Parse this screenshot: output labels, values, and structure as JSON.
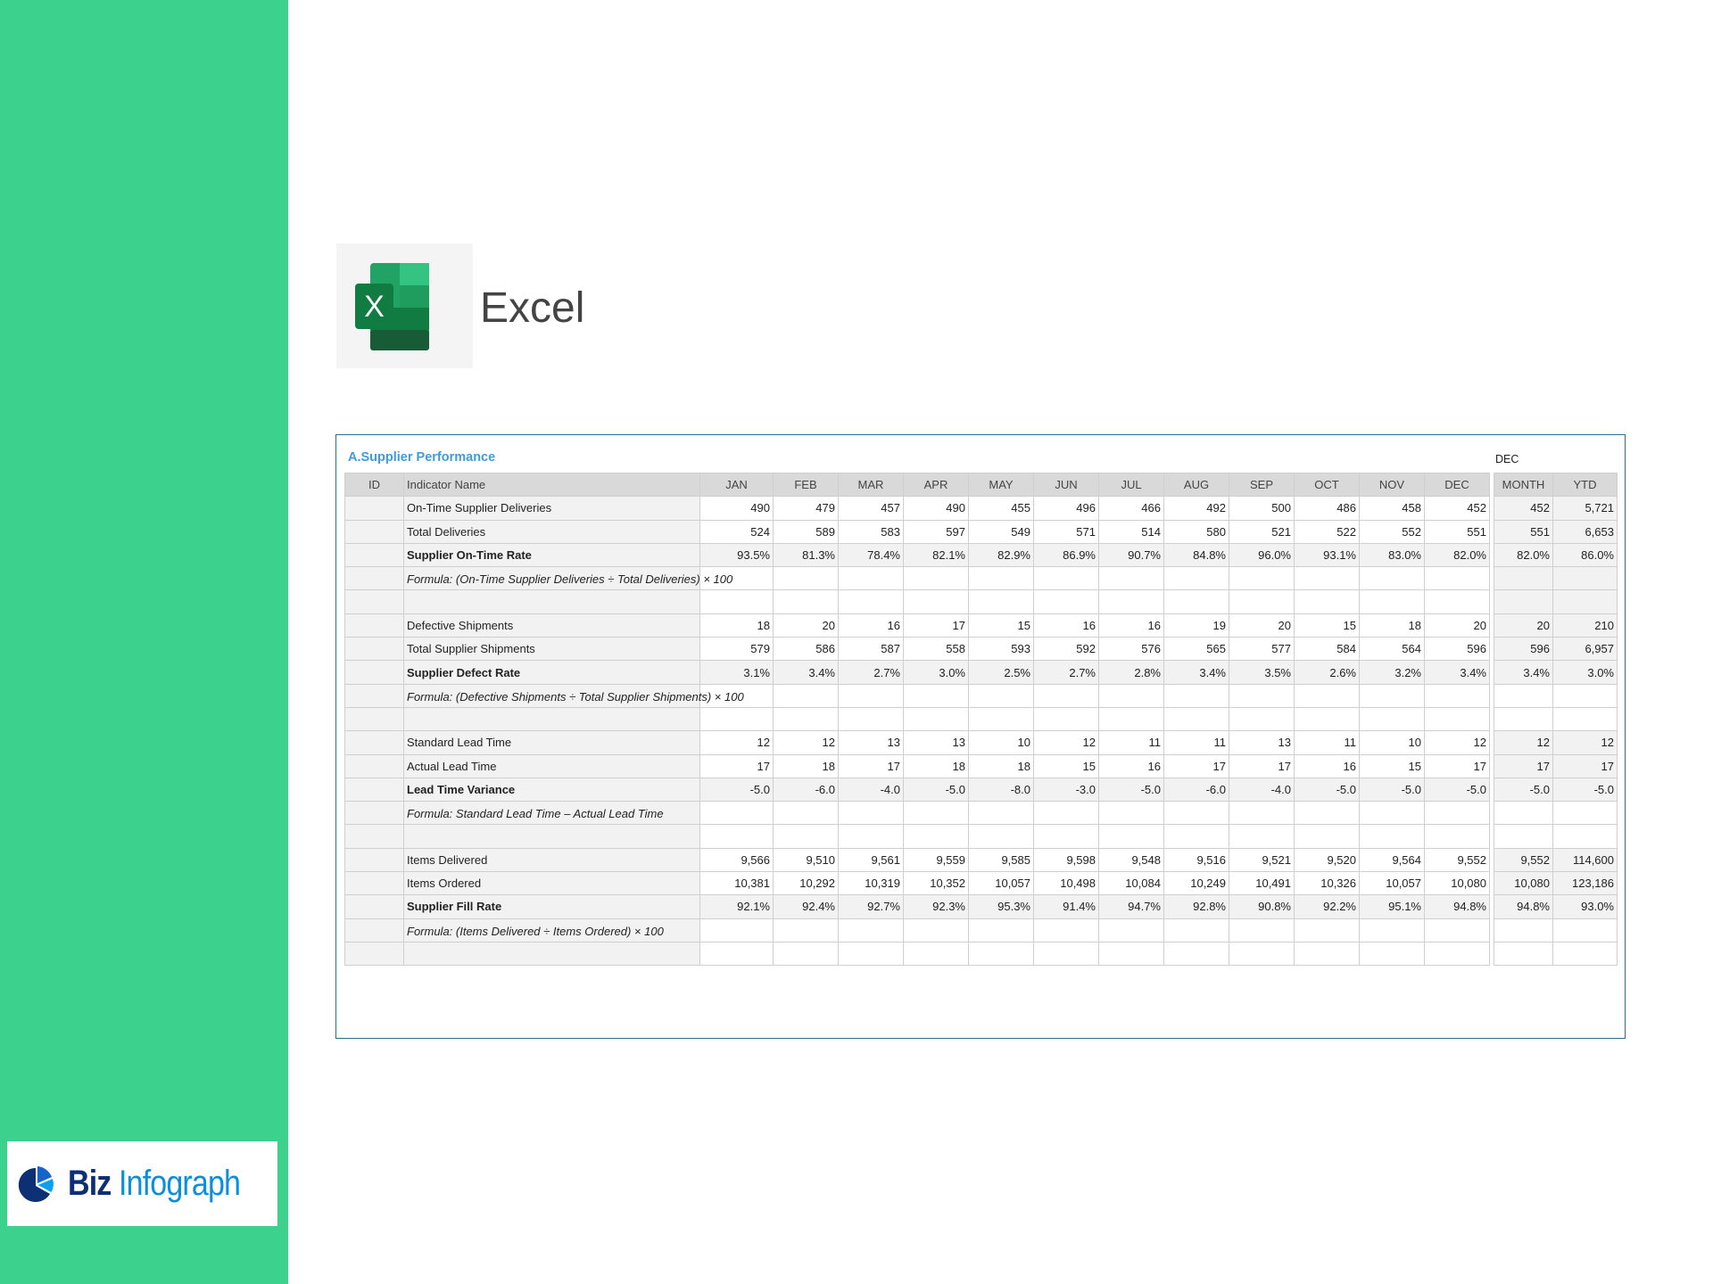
{
  "brand": {
    "logo_text_1": "Biz",
    "logo_text_2": "Infograph",
    "app_name": "Excel"
  },
  "colors": {
    "sidebar": "#3dd18e",
    "accent_title": "#3f9be0",
    "frame": "#2e6e8a",
    "header_bg": "#d9d9d9"
  },
  "sheet": {
    "title": "A.Supplier Performance",
    "summary_period": "DEC",
    "headers": {
      "id": "ID",
      "name": "Indicator Name",
      "months": [
        "JAN",
        "FEB",
        "MAR",
        "APR",
        "MAY",
        "JUN",
        "JUL",
        "AUG",
        "SEP",
        "OCT",
        "NOV",
        "DEC"
      ],
      "month": "MONTH",
      "ytd": "YTD"
    },
    "rows": [
      {
        "type": "data",
        "name": "On-Time Supplier Deliveries",
        "values": [
          "490",
          "479",
          "457",
          "490",
          "455",
          "496",
          "466",
          "492",
          "500",
          "486",
          "458",
          "452"
        ],
        "month": "452",
        "ytd": "5,721"
      },
      {
        "type": "data",
        "name": "Total Deliveries",
        "values": [
          "524",
          "589",
          "583",
          "597",
          "549",
          "571",
          "514",
          "580",
          "521",
          "522",
          "552",
          "551"
        ],
        "month": "551",
        "ytd": "6,653"
      },
      {
        "type": "bold",
        "name": "Supplier On-Time Rate",
        "values": [
          "93.5%",
          "81.3%",
          "78.4%",
          "82.1%",
          "82.9%",
          "86.9%",
          "90.7%",
          "84.8%",
          "96.0%",
          "93.1%",
          "83.0%",
          "82.0%"
        ],
        "month": "82.0%",
        "ytd": "86.0%"
      },
      {
        "type": "formula",
        "name": "Formula: (On-Time Supplier Deliveries ÷ Total Deliveries) × 100",
        "grey": true
      },
      {
        "type": "blank",
        "grey": true
      },
      {
        "type": "data",
        "name": "Defective Shipments",
        "values": [
          "18",
          "20",
          "16",
          "17",
          "15",
          "16",
          "16",
          "19",
          "20",
          "15",
          "18",
          "20"
        ],
        "month": "20",
        "ytd": "210"
      },
      {
        "type": "data",
        "name": "Total Supplier Shipments",
        "values": [
          "579",
          "586",
          "587",
          "558",
          "593",
          "592",
          "576",
          "565",
          "577",
          "584",
          "564",
          "596"
        ],
        "month": "596",
        "ytd": "6,957"
      },
      {
        "type": "bold",
        "name": "Supplier Defect Rate",
        "values": [
          "3.1%",
          "3.4%",
          "2.7%",
          "3.0%",
          "2.5%",
          "2.7%",
          "2.8%",
          "3.4%",
          "3.5%",
          "2.6%",
          "3.2%",
          "3.4%"
        ],
        "month": "3.4%",
        "ytd": "3.0%"
      },
      {
        "type": "formula",
        "name": "Formula: (Defective Shipments ÷ Total Supplier Shipments) × 100"
      },
      {
        "type": "blank"
      },
      {
        "type": "data",
        "name": "Standard Lead Time",
        "values": [
          "12",
          "12",
          "13",
          "13",
          "10",
          "12",
          "11",
          "11",
          "13",
          "11",
          "10",
          "12"
        ],
        "month": "12",
        "ytd": "12"
      },
      {
        "type": "data",
        "name": "Actual Lead Time",
        "values": [
          "17",
          "18",
          "17",
          "18",
          "18",
          "15",
          "16",
          "17",
          "17",
          "16",
          "15",
          "17"
        ],
        "month": "17",
        "ytd": "17"
      },
      {
        "type": "bold",
        "name": "Lead Time Variance",
        "values": [
          "-5.0",
          "-6.0",
          "-4.0",
          "-5.0",
          "-8.0",
          "-3.0",
          "-5.0",
          "-6.0",
          "-4.0",
          "-5.0",
          "-5.0",
          "-5.0"
        ],
        "month": "-5.0",
        "ytd": "-5.0"
      },
      {
        "type": "formula",
        "name": "Formula: Standard Lead Time – Actual Lead Time"
      },
      {
        "type": "blank"
      },
      {
        "type": "data",
        "name": "Items Delivered",
        "values": [
          "9,566",
          "9,510",
          "9,561",
          "9,559",
          "9,585",
          "9,598",
          "9,548",
          "9,516",
          "9,521",
          "9,520",
          "9,564",
          "9,552"
        ],
        "month": "9,552",
        "ytd": "114,600"
      },
      {
        "type": "data",
        "name": "Items Ordered",
        "values": [
          "10,381",
          "10,292",
          "10,319",
          "10,352",
          "10,057",
          "10,498",
          "10,084",
          "10,249",
          "10,491",
          "10,326",
          "10,057",
          "10,080"
        ],
        "month": "10,080",
        "ytd": "123,186"
      },
      {
        "type": "bold",
        "name": "Supplier Fill Rate",
        "values": [
          "92.1%",
          "92.4%",
          "92.7%",
          "92.3%",
          "95.3%",
          "91.4%",
          "94.7%",
          "92.8%",
          "90.8%",
          "92.2%",
          "95.1%",
          "94.8%"
        ],
        "month": "94.8%",
        "ytd": "93.0%"
      },
      {
        "type": "formula",
        "name": "Formula: (Items Delivered ÷ Items Ordered) × 100"
      },
      {
        "type": "blank"
      }
    ]
  }
}
